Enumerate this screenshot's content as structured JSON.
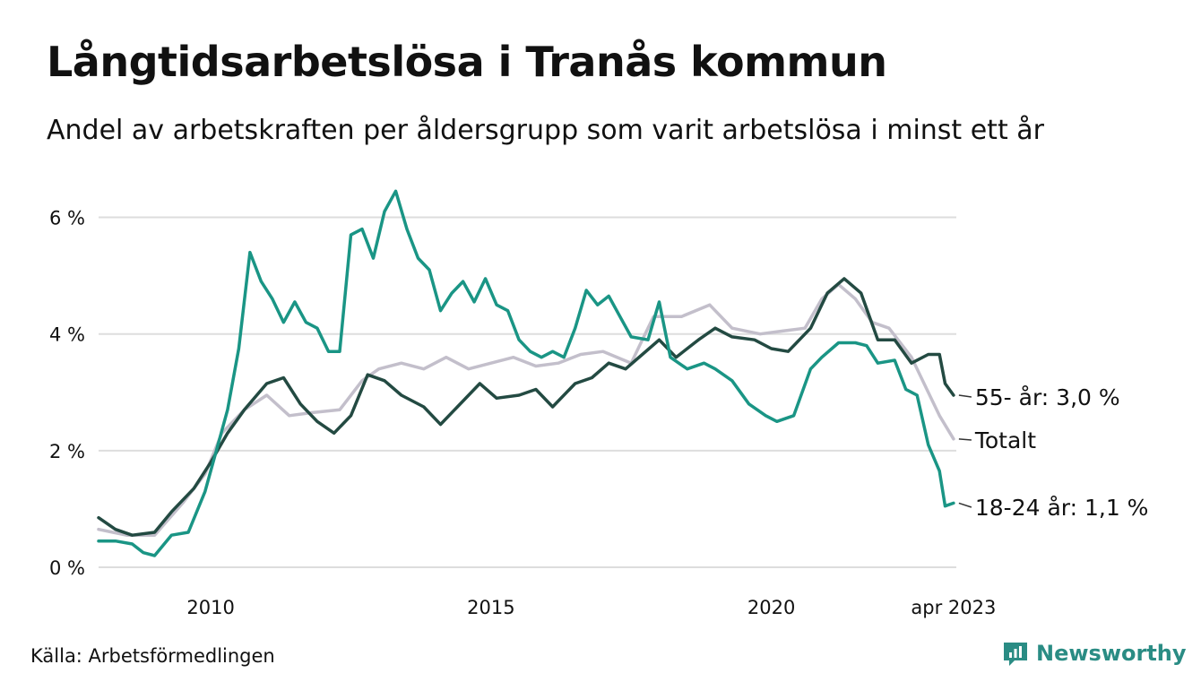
{
  "header": {
    "title": "Långtidsarbetslösa i Tranås kommun",
    "subtitle": "Andel av arbetskraften per åldersgrupp som varit arbetslösa i minst ett år"
  },
  "footer": {
    "source": "Källa: Arbetsförmedlingen",
    "brand": "Newsworthy"
  },
  "colors": {
    "youth": "#1a9585",
    "older": "#234a42",
    "total": "#c3bfcb",
    "grid": "#dddddd",
    "brand": "#2a8c84"
  },
  "chart_data": {
    "type": "line",
    "y_ticks": [
      {
        "value": 0,
        "label": "0 %"
      },
      {
        "value": 2,
        "label": "2 %"
      },
      {
        "value": 4,
        "label": "4 %"
      },
      {
        "value": 6,
        "label": "6 %"
      }
    ],
    "x_ticks": [
      {
        "value": 2010,
        "label": "2010"
      },
      {
        "value": 2015,
        "label": "2015"
      },
      {
        "value": 2020,
        "label": "2020"
      },
      {
        "value": 2023.25,
        "label": "apr 2023"
      }
    ],
    "xlim": [
      2008.0,
      2023.3
    ],
    "ylim": [
      0,
      6.5
    ],
    "grid": true,
    "series": [
      {
        "key": "total",
        "name": "Totalt",
        "end_label": "Totalt",
        "points": [
          [
            2008.0,
            0.65
          ],
          [
            2008.5,
            0.55
          ],
          [
            2009.0,
            0.55
          ],
          [
            2009.5,
            1.1
          ],
          [
            2009.9,
            1.6
          ],
          [
            2010.2,
            2.3
          ],
          [
            2010.6,
            2.7
          ],
          [
            2011.0,
            2.95
          ],
          [
            2011.4,
            2.6
          ],
          [
            2011.8,
            2.65
          ],
          [
            2012.3,
            2.7
          ],
          [
            2012.7,
            3.2
          ],
          [
            2013.0,
            3.4
          ],
          [
            2013.4,
            3.5
          ],
          [
            2013.8,
            3.4
          ],
          [
            2014.2,
            3.6
          ],
          [
            2014.6,
            3.4
          ],
          [
            2015.0,
            3.5
          ],
          [
            2015.4,
            3.6
          ],
          [
            2015.8,
            3.45
          ],
          [
            2016.2,
            3.5
          ],
          [
            2016.6,
            3.65
          ],
          [
            2017.0,
            3.7
          ],
          [
            2017.5,
            3.5
          ],
          [
            2017.9,
            4.3
          ],
          [
            2018.4,
            4.3
          ],
          [
            2018.9,
            4.5
          ],
          [
            2019.3,
            4.1
          ],
          [
            2019.8,
            4.0
          ],
          [
            2020.2,
            4.05
          ],
          [
            2020.6,
            4.1
          ],
          [
            2020.9,
            4.6
          ],
          [
            2021.2,
            4.85
          ],
          [
            2021.5,
            4.6
          ],
          [
            2021.8,
            4.2
          ],
          [
            2022.1,
            4.1
          ],
          [
            2022.5,
            3.6
          ],
          [
            2022.8,
            3.0
          ],
          [
            2023.0,
            2.6
          ],
          [
            2023.25,
            2.2
          ]
        ]
      },
      {
        "key": "older",
        "name": "55- år",
        "end_label": "55- år: 3,0 %",
        "points": [
          [
            2008.0,
            0.85
          ],
          [
            2008.3,
            0.65
          ],
          [
            2008.6,
            0.55
          ],
          [
            2009.0,
            0.6
          ],
          [
            2009.3,
            0.95
          ],
          [
            2009.7,
            1.35
          ],
          [
            2010.0,
            1.8
          ],
          [
            2010.3,
            2.3
          ],
          [
            2010.6,
            2.7
          ],
          [
            2011.0,
            3.15
          ],
          [
            2011.3,
            3.25
          ],
          [
            2011.6,
            2.8
          ],
          [
            2011.9,
            2.5
          ],
          [
            2012.2,
            2.3
          ],
          [
            2012.5,
            2.6
          ],
          [
            2012.8,
            3.3
          ],
          [
            2013.1,
            3.2
          ],
          [
            2013.4,
            2.95
          ],
          [
            2013.8,
            2.75
          ],
          [
            2014.1,
            2.45
          ],
          [
            2014.5,
            2.85
          ],
          [
            2014.8,
            3.15
          ],
          [
            2015.1,
            2.9
          ],
          [
            2015.5,
            2.95
          ],
          [
            2015.8,
            3.05
          ],
          [
            2016.1,
            2.75
          ],
          [
            2016.5,
            3.15
          ],
          [
            2016.8,
            3.25
          ],
          [
            2017.1,
            3.5
          ],
          [
            2017.4,
            3.4
          ],
          [
            2017.7,
            3.65
          ],
          [
            2018.0,
            3.9
          ],
          [
            2018.3,
            3.6
          ],
          [
            2018.7,
            3.9
          ],
          [
            2019.0,
            4.1
          ],
          [
            2019.3,
            3.95
          ],
          [
            2019.7,
            3.9
          ],
          [
            2020.0,
            3.75
          ],
          [
            2020.3,
            3.7
          ],
          [
            2020.7,
            4.1
          ],
          [
            2021.0,
            4.7
          ],
          [
            2021.3,
            4.95
          ],
          [
            2021.6,
            4.7
          ],
          [
            2021.9,
            3.9
          ],
          [
            2022.2,
            3.9
          ],
          [
            2022.5,
            3.5
          ],
          [
            2022.8,
            3.65
          ],
          [
            2023.0,
            3.65
          ],
          [
            2023.1,
            3.15
          ],
          [
            2023.25,
            2.95
          ]
        ]
      },
      {
        "key": "youth",
        "name": "18-24 år",
        "end_label": "18-24 år: 1,1 %",
        "points": [
          [
            2008.0,
            0.45
          ],
          [
            2008.3,
            0.45
          ],
          [
            2008.6,
            0.4
          ],
          [
            2008.8,
            0.25
          ],
          [
            2009.0,
            0.2
          ],
          [
            2009.3,
            0.55
          ],
          [
            2009.6,
            0.6
          ],
          [
            2009.9,
            1.3
          ],
          [
            2010.1,
            2.0
          ],
          [
            2010.3,
            2.7
          ],
          [
            2010.5,
            3.75
          ],
          [
            2010.7,
            5.4
          ],
          [
            2010.9,
            4.9
          ],
          [
            2011.1,
            4.6
          ],
          [
            2011.3,
            4.2
          ],
          [
            2011.5,
            4.55
          ],
          [
            2011.7,
            4.2
          ],
          [
            2011.9,
            4.1
          ],
          [
            2012.1,
            3.7
          ],
          [
            2012.3,
            3.7
          ],
          [
            2012.5,
            5.7
          ],
          [
            2012.7,
            5.8
          ],
          [
            2012.9,
            5.3
          ],
          [
            2013.1,
            6.1
          ],
          [
            2013.3,
            6.45
          ],
          [
            2013.5,
            5.8
          ],
          [
            2013.7,
            5.3
          ],
          [
            2013.9,
            5.1
          ],
          [
            2014.1,
            4.4
          ],
          [
            2014.3,
            4.7
          ],
          [
            2014.5,
            4.9
          ],
          [
            2014.7,
            4.55
          ],
          [
            2014.9,
            4.95
          ],
          [
            2015.1,
            4.5
          ],
          [
            2015.3,
            4.4
          ],
          [
            2015.5,
            3.9
          ],
          [
            2015.7,
            3.7
          ],
          [
            2015.9,
            3.6
          ],
          [
            2016.1,
            3.7
          ],
          [
            2016.3,
            3.6
          ],
          [
            2016.5,
            4.1
          ],
          [
            2016.7,
            4.75
          ],
          [
            2016.9,
            4.5
          ],
          [
            2017.1,
            4.65
          ],
          [
            2017.3,
            4.3
          ],
          [
            2017.5,
            3.95
          ],
          [
            2017.8,
            3.9
          ],
          [
            2018.0,
            4.55
          ],
          [
            2018.2,
            3.6
          ],
          [
            2018.5,
            3.4
          ],
          [
            2018.8,
            3.5
          ],
          [
            2019.0,
            3.4
          ],
          [
            2019.3,
            3.2
          ],
          [
            2019.6,
            2.8
          ],
          [
            2019.9,
            2.6
          ],
          [
            2020.1,
            2.5
          ],
          [
            2020.4,
            2.6
          ],
          [
            2020.7,
            3.4
          ],
          [
            2020.9,
            3.6
          ],
          [
            2021.2,
            3.85
          ],
          [
            2021.5,
            3.85
          ],
          [
            2021.7,
            3.8
          ],
          [
            2021.9,
            3.5
          ],
          [
            2022.2,
            3.55
          ],
          [
            2022.4,
            3.05
          ],
          [
            2022.6,
            2.95
          ],
          [
            2022.8,
            2.1
          ],
          [
            2023.0,
            1.65
          ],
          [
            2023.1,
            1.05
          ],
          [
            2023.25,
            1.1
          ]
        ]
      }
    ]
  }
}
